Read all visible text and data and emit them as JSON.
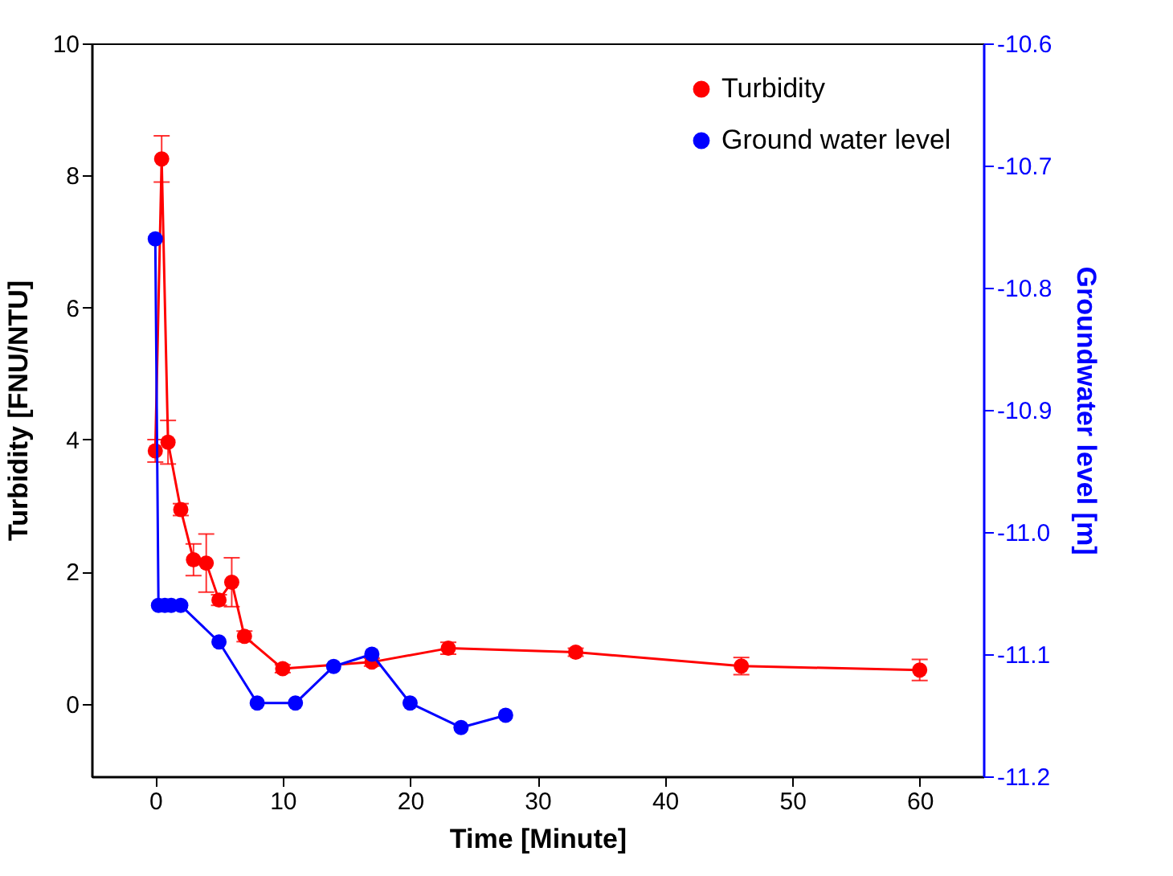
{
  "chart_data": {
    "type": "line",
    "xlabel": "Time [Minute]",
    "ylabel": "Turbidity [FNU/NTU]",
    "y2label": "Groundwater level [m]",
    "xlim": [
      -5,
      65
    ],
    "xticks": [
      0,
      10,
      20,
      30,
      40,
      50,
      60
    ],
    "ylim": [
      -1.1,
      10
    ],
    "yticks": [
      0,
      2,
      4,
      6,
      8,
      10
    ],
    "y2lim": [
      -11.2,
      -10.6
    ],
    "y2ticks": [
      -11.2,
      -11.1,
      {
        "value": -11,
        "label": "-11.0"
      },
      -10.9,
      -10.8,
      -10.7,
      -10.6
    ],
    "marker": "circle",
    "line_style": "solid",
    "legend": "top right",
    "grid": false,
    "series": [
      {
        "name": "Turbidity",
        "color": "#ff0000",
        "x": [
          0,
          0.5,
          1,
          2,
          3,
          4,
          5,
          6,
          7,
          10,
          17,
          23,
          33,
          46,
          60
        ],
        "values": [
          3.83,
          8.25,
          3.96,
          2.94,
          2.18,
          2.13,
          1.57,
          1.84,
          1.02,
          0.53,
          0.63,
          0.84,
          0.78,
          0.57,
          0.51
        ],
        "errors": [
          0.17,
          0.35,
          0.33,
          0.09,
          0.24,
          0.44,
          0.08,
          0.37,
          0.08,
          0.06,
          0.06,
          0.09,
          0.06,
          0.13,
          0.16
        ]
      },
      {
        "name": "Ground water level",
        "color": "#0000ff",
        "axis": "y2",
        "x": [
          0,
          0.25,
          0.75,
          1.25,
          2,
          5,
          8,
          11,
          14,
          17,
          20,
          24,
          27.5
        ],
        "values": [
          -10.76,
          -11.06,
          -11.06,
          -11.06,
          -11.06,
          -11.09,
          -11.14,
          -11.14,
          -11.11,
          -11.1,
          -11.14,
          -11.16,
          -11.15
        ]
      }
    ]
  }
}
